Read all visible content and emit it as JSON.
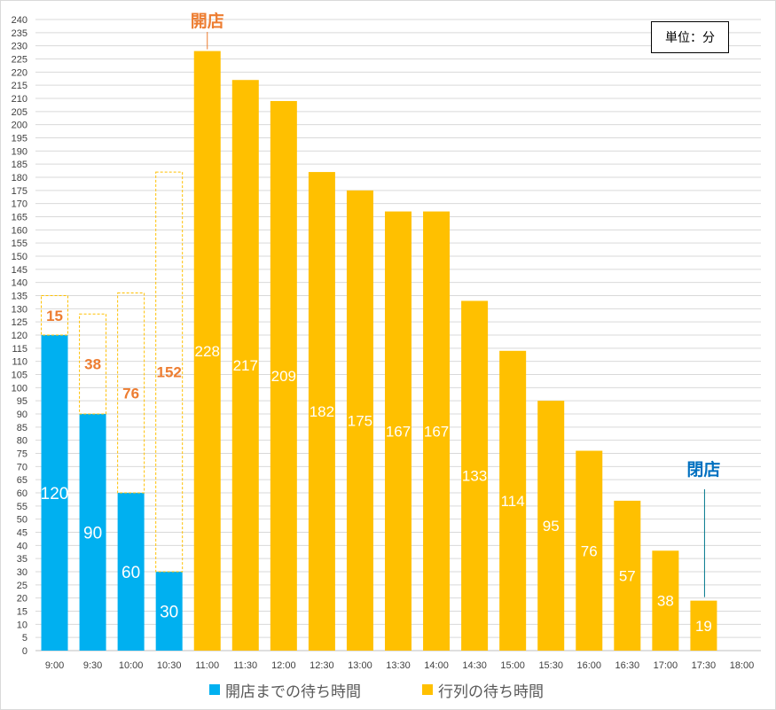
{
  "unit_label": "単位：分",
  "annotations": {
    "open": {
      "text": "開店",
      "at": "11:00",
      "color": "#ED7D31"
    },
    "close": {
      "text": "閉店",
      "at": "17:30",
      "color": "#0070C0"
    }
  },
  "colors": {
    "pre_open": "#00B0F0",
    "queue": "#FFC000",
    "pre_open_label": "#ED7D31",
    "grid": "#d9d9d9",
    "axis_text": "#404040"
  },
  "chart_data": {
    "type": "bar",
    "stacked": true,
    "categories": [
      "9:00",
      "9:30",
      "10:00",
      "10:30",
      "11:00",
      "11:30",
      "12:00",
      "12:30",
      "13:00",
      "13:30",
      "14:00",
      "14:30",
      "15:00",
      "15:30",
      "16:00",
      "16:30",
      "17:00",
      "17:30",
      "18:00"
    ],
    "series": [
      {
        "name": "開店までの待ち時間",
        "values": [
          120,
          90,
          60,
          30,
          0,
          0,
          0,
          0,
          0,
          0,
          0,
          0,
          0,
          0,
          0,
          0,
          0,
          0,
          0
        ]
      },
      {
        "name": "行列の待ち時間",
        "values": [
          15,
          38,
          76,
          152,
          228,
          217,
          209,
          182,
          175,
          167,
          167,
          133,
          114,
          95,
          76,
          57,
          38,
          19,
          0
        ]
      }
    ],
    "queue_segment_style": "dashed outline for 9:00–10:30",
    "ylim": [
      0,
      240
    ],
    "ytick_step": 5,
    "grid": true,
    "legend": "bottom"
  }
}
